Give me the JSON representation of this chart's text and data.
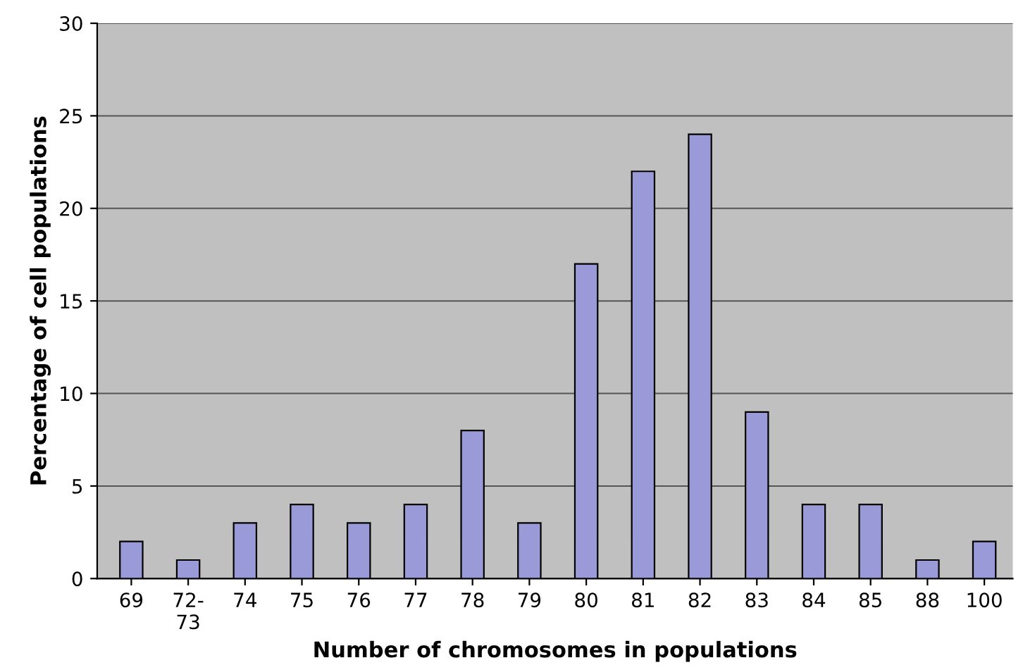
{
  "chart_data": {
    "type": "bar",
    "xlabel": "Number of chromosomes in populations",
    "ylabel": "Percentage of cell populations",
    "categories": [
      "69",
      "72-\n73",
      "74",
      "75",
      "76",
      "77",
      "78",
      "79",
      "80",
      "81",
      "82",
      "83",
      "84",
      "85",
      "88",
      "100"
    ],
    "values": [
      2,
      1,
      3,
      4,
      3,
      4,
      8,
      3,
      17,
      22,
      24,
      9,
      4,
      4,
      1,
      2
    ],
    "color": "#9a9ad8",
    "ylim": [
      0,
      30
    ],
    "yticks": [
      0,
      5,
      10,
      15,
      20,
      25,
      30
    ],
    "grid": "y"
  }
}
